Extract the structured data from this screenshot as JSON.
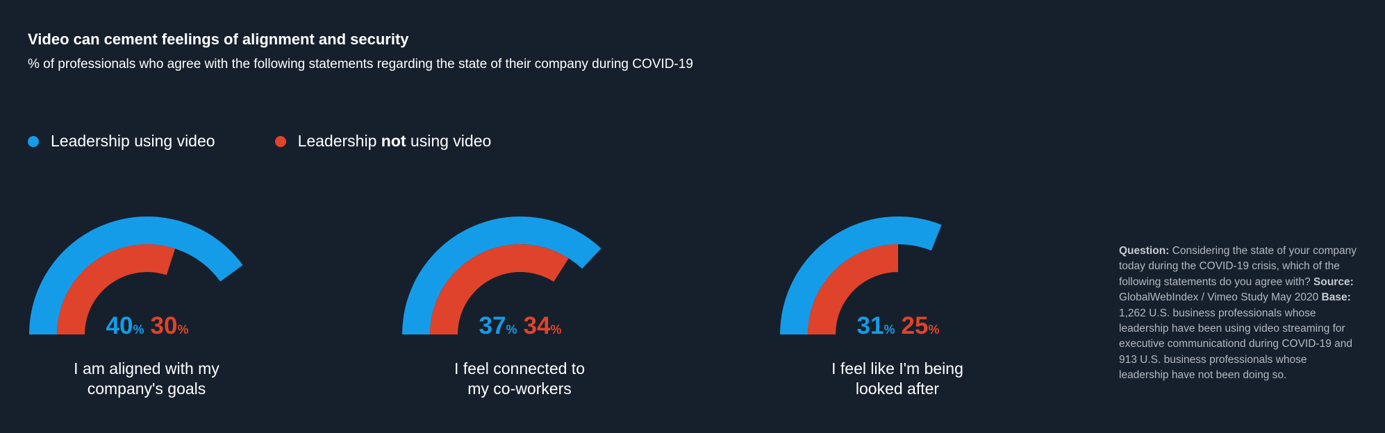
{
  "title": "Video can cement feelings of alignment and security",
  "subtitle": "% of professionals who agree with the following statements regarding the state of their company during COVID-19",
  "legend": {
    "using": {
      "text": "Leadership using video"
    },
    "not_using": {
      "prefix": "Leadership ",
      "bold": "not",
      "suffix": " using video"
    }
  },
  "colors": {
    "using": "#159ce8",
    "not_using": "#e0432b",
    "background": "#16202c"
  },
  "chart_data": {
    "type": "gauge",
    "scale": [
      0,
      100
    ],
    "series": [
      {
        "name": "Leadership using video",
        "values": [
          40,
          37,
          31
        ]
      },
      {
        "name": "Leadership not using video",
        "values": [
          30,
          34,
          25
        ]
      }
    ],
    "categories": [
      "I am aligned with my company's goals",
      "I feel connected to my co-workers",
      "I feel like I'm being looked after"
    ],
    "value_suffix": "%"
  },
  "captions": [
    {
      "line1": "I am aligned with my",
      "line2": "company's goals"
    },
    {
      "line1": "I feel connected to",
      "line2": "my co-workers"
    },
    {
      "line1": "I feel like I'm being",
      "line2": "looked after"
    }
  ],
  "footnote": {
    "question_label": "Question:",
    "question_text": " Considering the state of your company today during the COVID-19 crisis, which of the following statements do you agree with? ",
    "source_label": "Source:",
    "source_text": " GlobalWebIndex / Vimeo Study May 2020 ",
    "base_label": "Base:",
    "base_text": " 1,262 U.S. business professionals whose leadership have been using video streaming for executive communicationd during COVID-19 and 913 U.S. business professionals whose leadership have not been doing so."
  }
}
